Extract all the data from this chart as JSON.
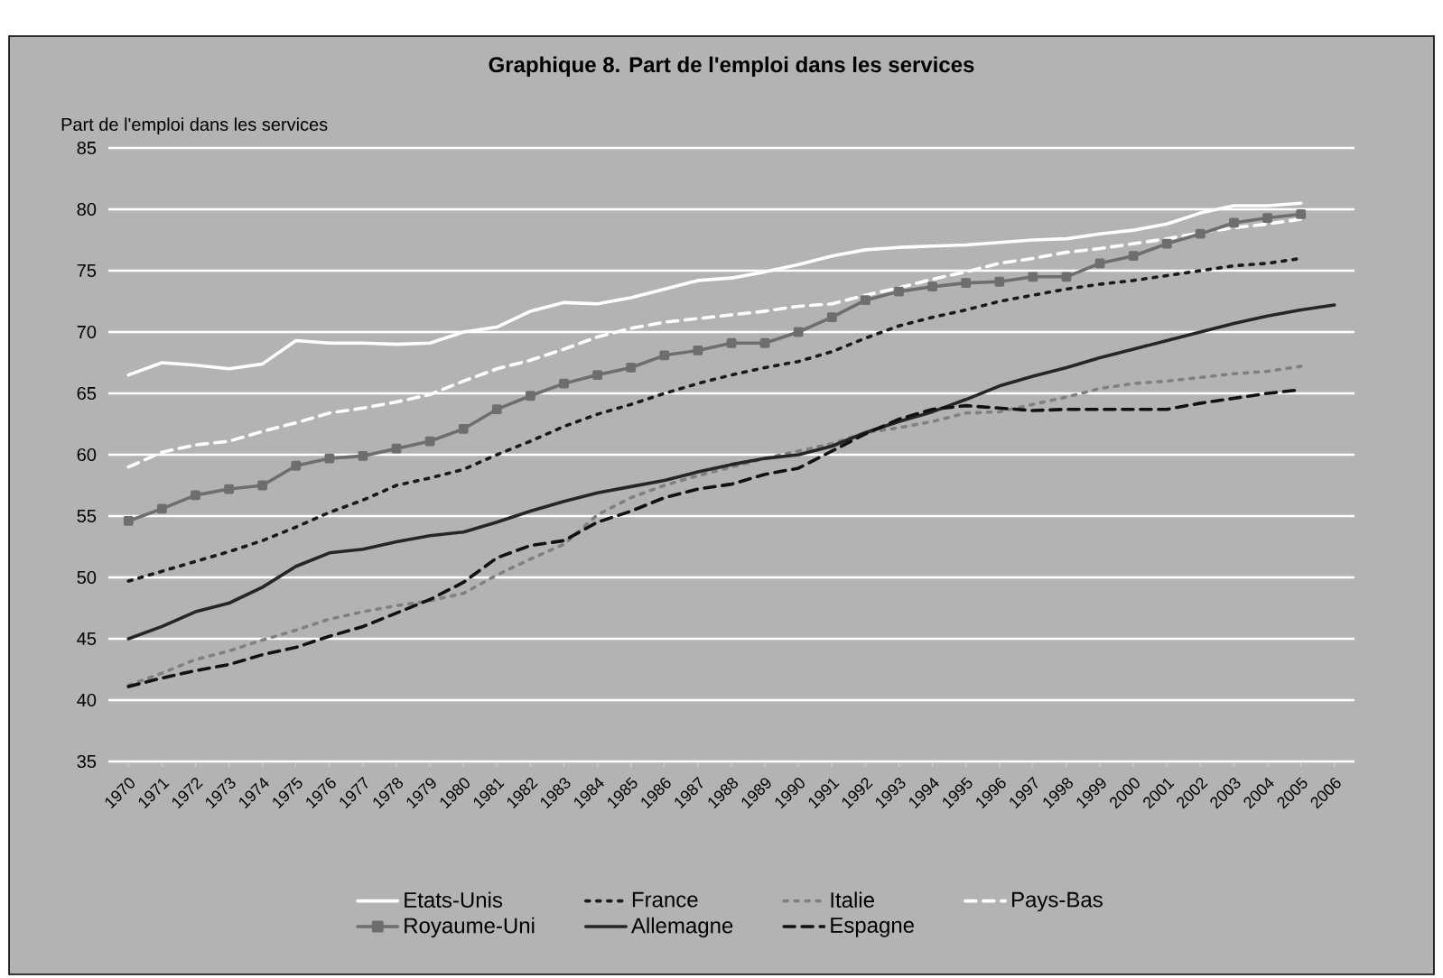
{
  "chart_data": {
    "type": "line",
    "title": "Graphique 8. Part de l'emploi dans les services",
    "ylabel": "Part de l'emploi dans les services",
    "categories": [
      "1970",
      "1971",
      "1972",
      "1973",
      "1974",
      "1975",
      "1976",
      "1977",
      "1978",
      "1979",
      "1980",
      "1981",
      "1982",
      "1983",
      "1984",
      "1985",
      "1986",
      "1987",
      "1988",
      "1989",
      "1990",
      "1991",
      "1992",
      "1993",
      "1994",
      "1995",
      "1996",
      "1997",
      "1998",
      "1999",
      "2000",
      "2001",
      "2002",
      "2003",
      "2004",
      "2005",
      "2006"
    ],
    "ylim": [
      35,
      85
    ],
    "yticks": [
      35,
      40,
      45,
      50,
      55,
      60,
      65,
      70,
      75,
      80,
      85
    ],
    "grid": "y",
    "legend": "bottom",
    "series": [
      {
        "name": "Etats-Unis",
        "color": "#ffffff",
        "line_style": "solid",
        "values": [
          66.5,
          67.5,
          67.3,
          67,
          67.4,
          69.3,
          69.1,
          69.1,
          69,
          69.1,
          70,
          70.4,
          71.7,
          72.4,
          72.3,
          72.8,
          73.5,
          74.2,
          74.4,
          74.9,
          75.5,
          76.2,
          76.7,
          76.9,
          77,
          77.1,
          77.3,
          77.5,
          77.6,
          78,
          78.3,
          78.8,
          79.7,
          80.3,
          80.3,
          80.5,
          null
        ]
      },
      {
        "name": "France",
        "color": "#1a1a1a",
        "line_style": "dotted",
        "values": [
          49.7,
          50.5,
          51.3,
          52.1,
          53,
          54.1,
          55.3,
          56.3,
          57.5,
          58.1,
          58.8,
          60,
          61.1,
          62.3,
          63.3,
          64.1,
          65,
          65.8,
          66.5,
          67.1,
          67.6,
          68.4,
          69.5,
          70.5,
          71.2,
          71.8,
          72.5,
          73,
          73.5,
          73.9,
          74.2,
          74.6,
          75,
          75.4,
          75.6,
          76,
          null
        ]
      },
      {
        "name": "Italie",
        "color": "#808080",
        "line_style": "dotted",
        "values": [
          41.2,
          42.2,
          43.3,
          44,
          44.9,
          45.7,
          46.6,
          47.2,
          47.7,
          48.1,
          48.7,
          50.2,
          51.5,
          52.7,
          55.1,
          56.5,
          57.5,
          58.3,
          59,
          59.7,
          60.3,
          60.9,
          61.8,
          62.2,
          62.7,
          63.4,
          63.5,
          64.1,
          64.7,
          65.4,
          65.8,
          66,
          66.3,
          66.6,
          66.8,
          67.2,
          null
        ]
      },
      {
        "name": "Pays-Bas",
        "color": "#ffffff",
        "line_style": "dashed",
        "values": [
          59,
          60.2,
          60.8,
          61.1,
          61.9,
          62.6,
          63.4,
          63.8,
          64.3,
          64.9,
          66,
          67,
          67.7,
          68.6,
          69.6,
          70.3,
          70.8,
          71.1,
          71.4,
          71.7,
          72.1,
          72.3,
          73,
          73.6,
          74.3,
          74.9,
          75.6,
          76,
          76.5,
          76.8,
          77.2,
          77.6,
          78.1,
          78.5,
          78.8,
          79.2,
          null
        ]
      },
      {
        "name": "Royaume-Uni",
        "color": "#6e6e6e",
        "line_style": "solid",
        "marker": "square",
        "values": [
          54.6,
          55.6,
          56.7,
          57.2,
          57.5,
          59.1,
          59.7,
          59.9,
          60.5,
          61.1,
          62.1,
          63.7,
          64.8,
          65.8,
          66.5,
          67.1,
          68.1,
          68.5,
          69.1,
          69.1,
          70,
          71.2,
          72.6,
          73.3,
          73.7,
          74,
          74.1,
          74.5,
          74.5,
          75.6,
          76.2,
          77.2,
          78,
          78.9,
          79.3,
          79.6,
          null
        ]
      },
      {
        "name": "Allemagne",
        "color": "#262626",
        "line_style": "solid",
        "values": [
          45,
          46,
          47.2,
          47.9,
          49.2,
          50.9,
          52,
          52.3,
          52.9,
          53.4,
          53.7,
          54.5,
          55.4,
          56.2,
          56.9,
          57.4,
          57.9,
          58.6,
          59.2,
          59.7,
          60,
          60.7,
          61.8,
          62.7,
          63.5,
          64.5,
          65.6,
          66.4,
          67.1,
          67.9,
          68.6,
          69.3,
          70,
          70.7,
          71.3,
          71.8,
          72.2
        ]
      },
      {
        "name": "Espagne",
        "color": "#111111",
        "line_style": "dashed",
        "values": [
          41.1,
          41.8,
          42.4,
          42.9,
          43.7,
          44.3,
          45.2,
          46,
          47.1,
          48.2,
          49.6,
          51.6,
          52.6,
          53,
          54.5,
          55.4,
          56.5,
          57.2,
          57.6,
          58.4,
          58.9,
          60.3,
          61.7,
          62.9,
          63.7,
          64,
          63.8,
          63.6,
          63.7,
          63.7,
          63.7,
          63.7,
          64.2,
          64.6,
          65,
          65.3,
          null
        ]
      }
    ]
  }
}
